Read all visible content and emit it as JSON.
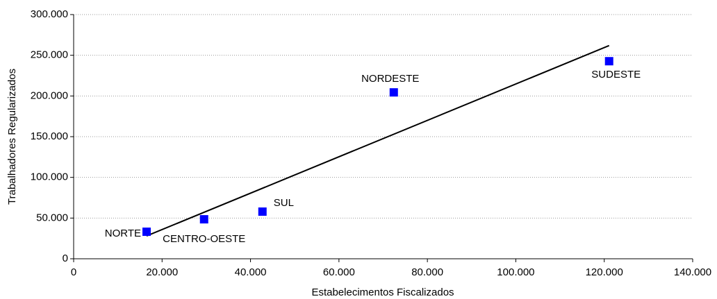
{
  "chart_data": {
    "type": "scatter",
    "x_label": "Estabelecimentos Fiscalizados",
    "y_label": "Trabalhadores Regularizados",
    "labels": [
      "NORTE",
      "CENTRO-OESTE",
      "SUL",
      "NORDESTE",
      "SUDESTE"
    ],
    "x": [
      16500,
      29500,
      42700,
      72400,
      121100
    ],
    "values": [
      33200,
      48500,
      57900,
      204400,
      242700
    ],
    "color": "#0000ff",
    "trendline": true,
    "grid": true,
    "xlim": [
      0,
      140000
    ],
    "xticks": [
      0,
      {
        "value": 20000,
        "label": "20.000"
      },
      {
        "value": 40000,
        "label": "40.000"
      },
      {
        "value": 60000,
        "label": "60.000"
      },
      {
        "value": 80000,
        "label": "80.000"
      },
      {
        "value": 100000,
        "label": "100.000"
      },
      {
        "value": 120000,
        "label": "120.000"
      },
      {
        "value": 140000,
        "label": "140.000"
      }
    ],
    "ylim": [
      0,
      300000
    ],
    "yticks": [
      0,
      {
        "value": 50000,
        "label": "50.000"
      },
      {
        "value": 100000,
        "label": "100.000"
      },
      {
        "value": 150000,
        "label": "150.000"
      },
      {
        "value": 200000,
        "label": "200.000"
      },
      {
        "value": 250000,
        "label": "250.000"
      },
      {
        "value": 300000,
        "label": "300.000"
      }
    ]
  }
}
